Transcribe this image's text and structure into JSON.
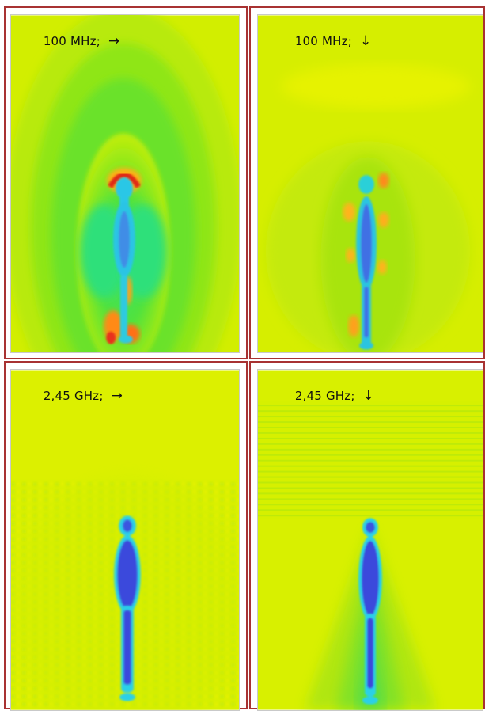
{
  "panels": [
    {
      "label": "100 MHz;",
      "direction_glyph": "→",
      "direction_icon": "arrow-right-icon"
    },
    {
      "label": "100 MHz;",
      "direction_glyph": "↓",
      "direction_icon": "arrow-down-icon"
    },
    {
      "label": "2,45 GHz;",
      "direction_glyph": "→",
      "direction_icon": "arrow-right-icon"
    },
    {
      "label": "2,45 GHz;",
      "direction_glyph": "↓",
      "direction_icon": "arrow-down-icon"
    }
  ],
  "colors": {
    "frame": "#a83232",
    "field_background": "#d9f000",
    "field_green": "#3ee04a",
    "body_blue": "#3a55e0",
    "body_cyan": "#2ad0e8",
    "hot_red": "#e8321e",
    "hot_orange": "#ffa21a"
  }
}
